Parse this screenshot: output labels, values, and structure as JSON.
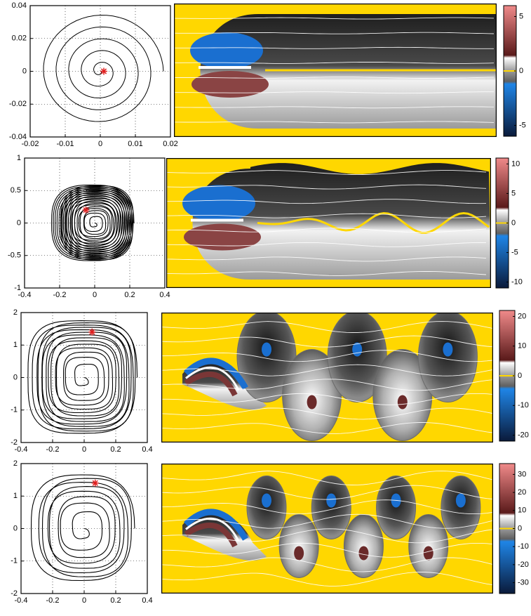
{
  "chart_data": [
    {
      "type": "line",
      "xlim": [
        -0.02,
        0.02
      ],
      "xticks": [
        -0.02,
        -0.01,
        0,
        0.01,
        0.02
      ],
      "ylim": [
        -0.04,
        0.04
      ],
      "yticks": [
        -0.04,
        -0.02,
        0,
        0.02,
        0.04
      ],
      "grid": true,
      "marker": {
        "x": 0.001,
        "y": 0,
        "color": "#e02020"
      }
    },
    {
      "type": "heatmap",
      "ylim": [
        -6,
        6
      ],
      "yticks": [
        -5,
        0,
        5
      ]
    },
    {
      "type": "line",
      "xlim": [
        -0.4,
        0.4
      ],
      "xticks": [
        -0.4,
        -0.2,
        0,
        0.2,
        0.4
      ],
      "ylim": [
        -1,
        1
      ],
      "yticks": [
        -1,
        -0.5,
        0,
        0.5,
        1
      ],
      "grid": true,
      "marker": {
        "x": -0.05,
        "y": 0.2,
        "color": "#e02020"
      }
    },
    {
      "type": "heatmap",
      "ylim": [
        -11,
        11
      ],
      "yticks": [
        -10,
        -5,
        0,
        5,
        10
      ]
    },
    {
      "type": "line",
      "xlim": [
        -0.4,
        0.4
      ],
      "xticks": [
        -0.4,
        -0.2,
        0,
        0.2,
        0.4
      ],
      "ylim": [
        -2,
        2
      ],
      "yticks": [
        -2,
        -1,
        0,
        1,
        2
      ],
      "grid": true,
      "marker": {
        "x": 0.05,
        "y": 1.4,
        "color": "#e02020"
      }
    },
    {
      "type": "heatmap",
      "ylim": [
        -22,
        22
      ],
      "yticks": [
        -20,
        -10,
        0,
        10,
        20
      ]
    },
    {
      "type": "line",
      "xlim": [
        -0.4,
        0.4
      ],
      "xticks": [
        -0.4,
        -0.2,
        0,
        0.2,
        0.4
      ],
      "ylim": [
        -2,
        2
      ],
      "yticks": [
        -2,
        -1,
        0,
        1,
        2
      ],
      "grid": true,
      "marker": {
        "x": 0.07,
        "y": 1.4,
        "color": "#e02020"
      }
    },
    {
      "type": "heatmap",
      "ylim": [
        -36,
        36
      ],
      "yticks": [
        -30,
        -20,
        -10,
        0,
        10,
        20,
        30
      ]
    }
  ]
}
